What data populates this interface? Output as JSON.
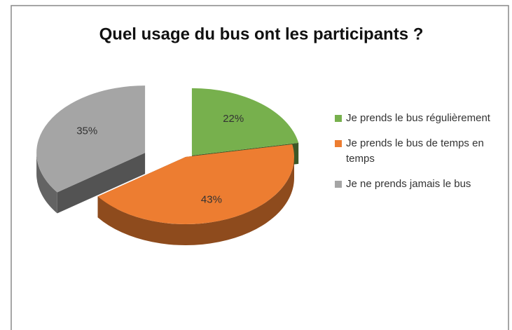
{
  "chart_data": {
    "type": "pie3d",
    "title": "Quel usage du bus ont les participants ?",
    "categories": [
      "Je prends le bus régulièrement",
      "Je prends le bus de temps en temps",
      "Je ne prends jamais le bus"
    ],
    "values": [
      22,
      43,
      35
    ],
    "value_labels": [
      "22%",
      "43%",
      "35%"
    ],
    "colors": [
      "#77b04d",
      "#ed7d31",
      "#a5a5a5"
    ],
    "legend": "right"
  }
}
